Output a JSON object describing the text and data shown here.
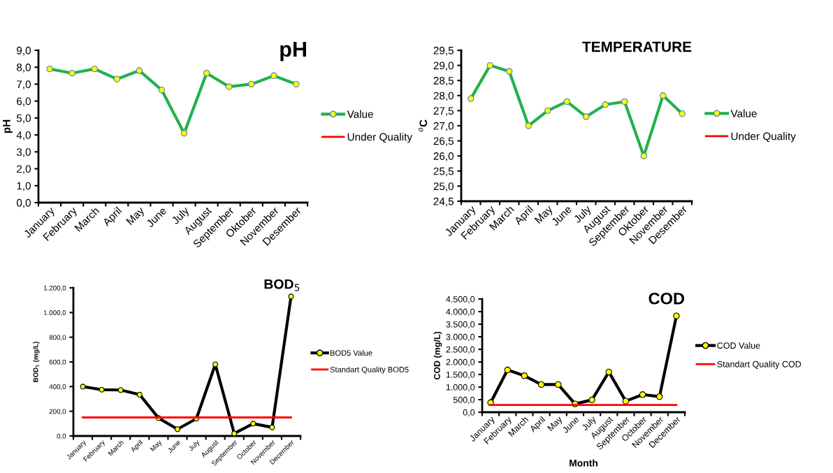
{
  "chart_data": [
    {
      "type": "line",
      "title": "pH",
      "ylabel": "pH",
      "categories": [
        "January",
        "February",
        "March",
        "April",
        "May",
        "June",
        "July",
        "August",
        "September",
        "Oktober",
        "November",
        "Desember"
      ],
      "series": [
        {
          "name": "Value",
          "color": "#22b14c",
          "marker": "circle",
          "values": [
            7.9,
            7.65,
            7.9,
            7.3,
            7.8,
            6.65,
            4.1,
            7.65,
            6.85,
            7.0,
            7.5,
            7.0
          ]
        },
        {
          "name": "Under Quality",
          "color": "#ff0000",
          "marker": "none",
          "values": [
            null,
            null,
            null,
            null,
            null,
            null,
            null,
            null,
            null,
            null,
            null,
            null
          ]
        }
      ],
      "ylim": [
        0,
        9
      ],
      "yticks": [
        {
          "value": 0,
          "label": "0,0"
        },
        {
          "value": 1,
          "label": "1,0"
        },
        {
          "value": 2,
          "label": "2,0"
        },
        {
          "value": 3,
          "label": "3,0"
        },
        {
          "value": 4,
          "label": "4,0"
        },
        {
          "value": 5,
          "label": "5,0"
        },
        {
          "value": 6,
          "label": "6,0"
        },
        {
          "value": 7,
          "label": "7,0"
        },
        {
          "value": 8,
          "label": "8,0"
        },
        {
          "value": 9,
          "label": "9,0"
        }
      ],
      "grid": false,
      "legend": "right"
    },
    {
      "type": "line",
      "title": "TEMPERATURE",
      "ylabel": "$^{o}$C",
      "categories": [
        "January",
        "February",
        "March",
        "April",
        "May",
        "June",
        "July",
        "August",
        "September",
        "Oktober",
        "November",
        "Desember"
      ],
      "series": [
        {
          "name": "Value",
          "color": "#22b14c",
          "marker": "circle",
          "values": [
            27.9,
            29.0,
            28.8,
            27.0,
            27.5,
            27.8,
            27.3,
            27.7,
            27.8,
            26.0,
            28.0,
            27.4
          ]
        },
        {
          "name": "Under Quality",
          "color": "#ff0000",
          "marker": "none",
          "values": [
            null,
            null,
            null,
            null,
            null,
            null,
            null,
            null,
            null,
            null,
            null,
            null
          ]
        }
      ],
      "ylim": [
        24.5,
        29.5
      ],
      "yticks": [
        {
          "value": 24.5,
          "label": "24,5"
        },
        {
          "value": 25,
          "label": "25,0"
        },
        {
          "value": 25.5,
          "label": "25,5"
        },
        {
          "value": 26,
          "label": "26,0"
        },
        {
          "value": 26.5,
          "label": "26,5"
        },
        {
          "value": 27,
          "label": "27,0"
        },
        {
          "value": 27.5,
          "label": "27,5"
        },
        {
          "value": 28,
          "label": "28,0"
        },
        {
          "value": 28.5,
          "label": "28,5"
        },
        {
          "value": 29,
          "label": "29,0"
        },
        {
          "value": 29.5,
          "label": "29,5"
        }
      ],
      "grid": false,
      "legend": "right"
    },
    {
      "type": "line",
      "title": "BOD$_{5}$",
      "ylabel": "BOD$_{5}$ (mg/L)",
      "categories": [
        "January",
        "February",
        "March",
        "April",
        "May",
        "June",
        "July",
        "August",
        "September",
        "October",
        "November",
        "December"
      ],
      "series": [
        {
          "name": "BOD5 Value",
          "color": "#000000",
          "marker": "circle",
          "values": [
            400,
            375,
            372,
            335,
            145,
            55,
            140,
            580,
            20,
            100,
            70,
            1130
          ]
        },
        {
          "name": "Standart Quality BOD5",
          "color": "#ff0000",
          "marker": "none",
          "values": [
            150,
            150,
            150,
            150,
            150,
            150,
            150,
            150,
            150,
            150,
            150,
            150
          ]
        }
      ],
      "ylim": [
        0,
        1200
      ],
      "yticks": [
        {
          "value": 0,
          "label": "0,0"
        },
        {
          "value": 200,
          "label": "200,0"
        },
        {
          "value": 400,
          "label": "400,0"
        },
        {
          "value": 600,
          "label": "600,0"
        },
        {
          "value": 800,
          "label": "800,0"
        },
        {
          "value": 1000,
          "label": "1.000,0"
        },
        {
          "value": 1200,
          "label": "1.200,0"
        }
      ],
      "grid": false,
      "legend": "right"
    },
    {
      "type": "line",
      "title": "COD",
      "xlabel": "Month",
      "ylabel": "COD (mg/L)",
      "categories": [
        "January",
        "February",
        "March",
        "April",
        "May",
        "June",
        "July",
        "August",
        "September",
        "October",
        "November",
        "December"
      ],
      "series": [
        {
          "name": "COD Value",
          "color": "#000000",
          "marker": "circle",
          "values": [
            380,
            1680,
            1450,
            1100,
            1100,
            330,
            490,
            1600,
            440,
            700,
            620,
            3830
          ]
        },
        {
          "name": "Standart Quality COD",
          "color": "#ff0000",
          "marker": "none",
          "values": [
            290,
            290,
            290,
            290,
            290,
            290,
            290,
            290,
            290,
            290,
            290,
            290
          ]
        }
      ],
      "ylim": [
        0,
        4500
      ],
      "yticks": [
        {
          "value": 0,
          "label": "0,0"
        },
        {
          "value": 500,
          "label": "500,0"
        },
        {
          "value": 1000,
          "label": "1.000,0"
        },
        {
          "value": 1500,
          "label": "1.500,0"
        },
        {
          "value": 2000,
          "label": "2.000,0"
        },
        {
          "value": 2500,
          "label": "2.500,0"
        },
        {
          "value": 3000,
          "label": "3.000,0"
        },
        {
          "value": 3500,
          "label": "3.500,0"
        },
        {
          "value": 4000,
          "label": "4.000,0"
        },
        {
          "value": 4500,
          "label": "4.500,0"
        }
      ],
      "grid": false,
      "legend": "right"
    }
  ]
}
